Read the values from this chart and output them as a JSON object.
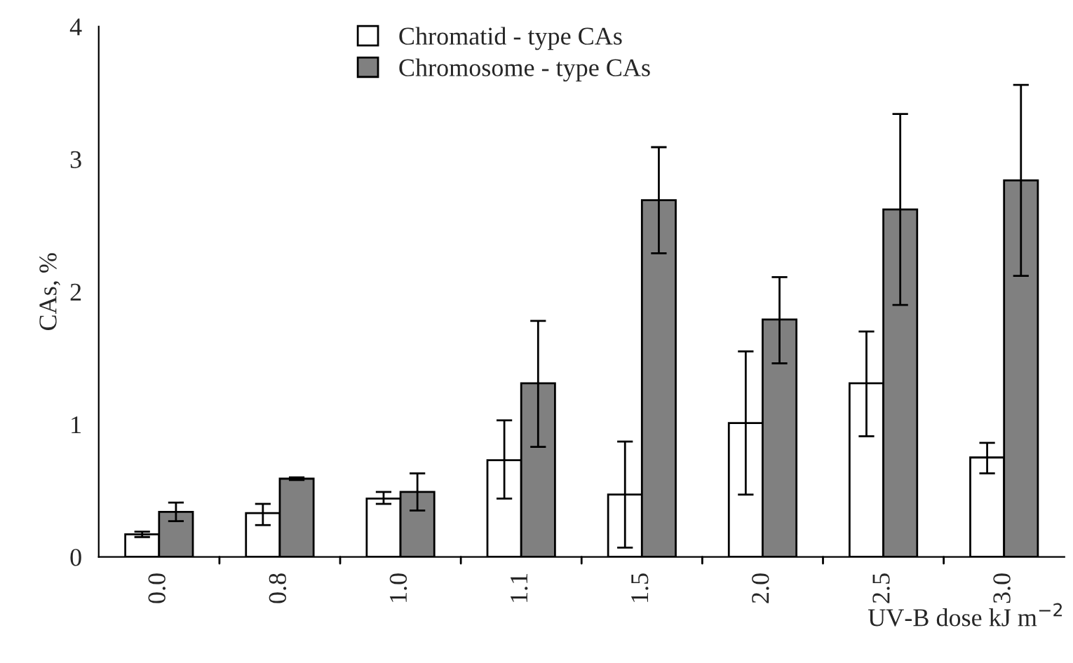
{
  "chart_data": {
    "type": "bar",
    "xlabel": "UV-B dose kJ m$^{−2}$",
    "ylabel": "CAs, %",
    "categories": [
      "0.0",
      "0.8",
      "1.0",
      "1.1",
      "1.5",
      "2.0",
      "2.5",
      "3.0"
    ],
    "series": [
      {
        "name": "Chromatid - type CAs",
        "color": "#ffffff",
        "values": [
          0.17,
          0.33,
          0.44,
          0.73,
          0.47,
          1.01,
          1.31,
          0.75
        ],
        "errors": [
          [
            0.15,
            0.19
          ],
          [
            0.24,
            0.4
          ],
          [
            0.4,
            0.49
          ],
          [
            0.44,
            1.03
          ],
          [
            0.07,
            0.87
          ],
          [
            0.47,
            1.55
          ],
          [
            0.91,
            1.7
          ],
          [
            0.63,
            0.86
          ]
        ]
      },
      {
        "name": "Chromosome - type CAs",
        "color": "#808080",
        "values": [
          0.34,
          0.59,
          0.49,
          1.31,
          2.69,
          1.79,
          2.62,
          2.84
        ],
        "errors": [
          [
            0.27,
            0.41
          ],
          [
            0.58,
            0.6
          ],
          [
            0.35,
            0.63
          ],
          [
            0.83,
            1.78
          ],
          [
            2.29,
            3.09
          ],
          [
            1.46,
            2.11
          ],
          [
            1.9,
            3.34
          ],
          [
            2.12,
            3.56
          ]
        ]
      }
    ],
    "ylim": [
      0,
      4
    ],
    "yticks": [
      0,
      1,
      2,
      3,
      4
    ],
    "grid": false,
    "legend": "top"
  }
}
